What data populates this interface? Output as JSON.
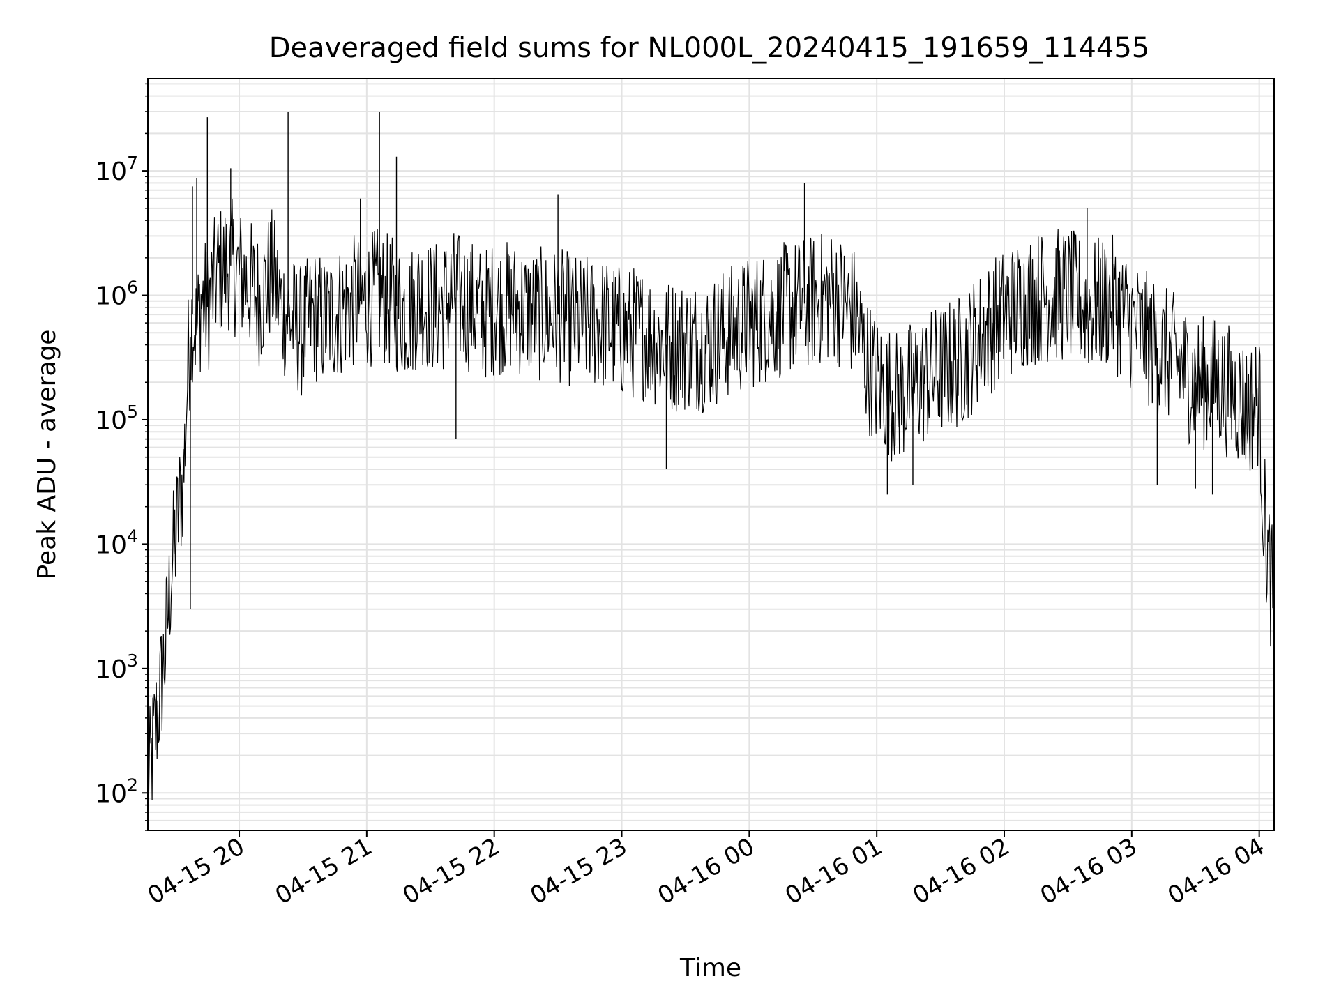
{
  "chart_data": {
    "type": "line",
    "title": "Deaveraged field sums for NL000L_20240415_191659_114455",
    "xlabel": "Time",
    "ylabel": "Peak ADU - average",
    "yscale": "log",
    "ylim": [
      50,
      55000000
    ],
    "xlim": [
      "2024-04-15 19:17",
      "2024-04-16 04:07"
    ],
    "grid": true,
    "line_color": "#000000",
    "y_ticks": [
      {
        "value": 100,
        "base": "10",
        "exp": "2"
      },
      {
        "value": 1000,
        "base": "10",
        "exp": "3"
      },
      {
        "value": 10000,
        "base": "10",
        "exp": "4"
      },
      {
        "value": 100000,
        "base": "10",
        "exp": "5"
      },
      {
        "value": 1000000,
        "base": "10",
        "exp": "6"
      },
      {
        "value": 10000000,
        "base": "10",
        "exp": "7"
      }
    ],
    "x_ticks": [
      {
        "value": "2024-04-15 20:00",
        "label": "04-15 20"
      },
      {
        "value": "2024-04-15 21:00",
        "label": "04-15 21"
      },
      {
        "value": "2024-04-15 22:00",
        "label": "04-15 22"
      },
      {
        "value": "2024-04-15 23:00",
        "label": "04-15 23"
      },
      {
        "value": "2024-04-16 00:00",
        "label": "04-16 00"
      },
      {
        "value": "2024-04-16 01:00",
        "label": "04-16 01"
      },
      {
        "value": "2024-04-16 02:00",
        "label": "04-16 02"
      },
      {
        "value": "2024-04-16 03:00",
        "label": "04-16 03"
      },
      {
        "value": "2024-04-16 04:00",
        "label": "04-16 04"
      }
    ],
    "series": [
      {
        "x": [
          "2024-04-15 19:17",
          "2024-04-15 19:19",
          "2024-04-15 19:22",
          "2024-04-15 19:25",
          "2024-04-15 19:28",
          "2024-04-15 19:31",
          "2024-04-15 19:34",
          "2024-04-15 19:36",
          "2024-04-15 19:38",
          "2024-04-15 19:40",
          "2024-04-15 19:42",
          "2024-04-15 19:45",
          "2024-04-15 19:50",
          "2024-04-15 19:55",
          "2024-04-15 20:00",
          "2024-04-15 20:05",
          "2024-04-15 20:10",
          "2024-04-15 20:15",
          "2024-04-15 20:20",
          "2024-04-15 20:25",
          "2024-04-15 20:30",
          "2024-04-15 20:35",
          "2024-04-15 20:40",
          "2024-04-15 20:45",
          "2024-04-15 20:50",
          "2024-04-15 20:55",
          "2024-04-15 21:00",
          "2024-04-15 21:05",
          "2024-04-15 21:10",
          "2024-04-15 21:15",
          "2024-04-15 21:20",
          "2024-04-15 21:25",
          "2024-04-15 21:30",
          "2024-04-15 21:35",
          "2024-04-15 21:40",
          "2024-04-15 21:45",
          "2024-04-15 21:50",
          "2024-04-15 21:55",
          "2024-04-15 22:00",
          "2024-04-15 22:10",
          "2024-04-15 22:20",
          "2024-04-15 22:30",
          "2024-04-15 22:40",
          "2024-04-15 22:50",
          "2024-04-15 23:00",
          "2024-04-15 23:10",
          "2024-04-15 23:20",
          "2024-04-15 23:30",
          "2024-04-15 23:40",
          "2024-04-15 23:50",
          "2024-04-16 00:00",
          "2024-04-16 00:10",
          "2024-04-16 00:20",
          "2024-04-16 00:30",
          "2024-04-16 00:40",
          "2024-04-16 00:50",
          "2024-04-16 00:55",
          "2024-04-16 01:00",
          "2024-04-16 01:10",
          "2024-04-16 01:20",
          "2024-04-16 01:30",
          "2024-04-16 01:40",
          "2024-04-16 01:50",
          "2024-04-16 02:00",
          "2024-04-16 02:10",
          "2024-04-16 02:20",
          "2024-04-16 02:30",
          "2024-04-16 02:40",
          "2024-04-16 02:50",
          "2024-04-16 03:00",
          "2024-04-16 03:10",
          "2024-04-16 03:20",
          "2024-04-16 03:30",
          "2024-04-16 03:40",
          "2024-04-16 03:50",
          "2024-04-16 03:55",
          "2024-04-16 04:00",
          "2024-04-16 04:02",
          "2024-04-16 04:04",
          "2024-04-16 04:07"
        ],
        "values": [
          100,
          200,
          500,
          1300,
          6000,
          15000,
          40000,
          300000,
          700000,
          500000,
          900000,
          800000,
          1500000,
          1800000,
          1500000,
          1200000,
          900000,
          1500000,
          800000,
          600000,
          500000,
          700000,
          600000,
          700000,
          800000,
          900000,
          900000,
          1000000,
          900000,
          800000,
          700000,
          1000000,
          800000,
          800000,
          1000000,
          900000,
          800000,
          700000,
          800000,
          800000,
          700000,
          700000,
          600000,
          600000,
          500000,
          500000,
          400000,
          400000,
          400000,
          500000,
          600000,
          700000,
          800000,
          900000,
          1000000,
          700000,
          300000,
          200000,
          150000,
          200000,
          250000,
          300000,
          500000,
          700000,
          900000,
          1000000,
          1000000,
          800000,
          900000,
          600000,
          400000,
          300000,
          200000,
          200000,
          150000,
          120000,
          150000,
          20000,
          8000,
          3000
        ]
      }
    ],
    "spikes": [
      {
        "x": "2024-04-15 19:38",
        "value": 7500000
      },
      {
        "x": "2024-04-15 19:40",
        "value": 8800000
      },
      {
        "x": "2024-04-15 19:45",
        "value": 27000000
      },
      {
        "x": "2024-04-15 19:56",
        "value": 10500000
      },
      {
        "x": "2024-04-15 20:23",
        "value": 30000000
      },
      {
        "x": "2024-04-15 20:57",
        "value": 6000000
      },
      {
        "x": "2024-04-15 21:06",
        "value": 30000000
      },
      {
        "x": "2024-04-15 21:14",
        "value": 13000000
      },
      {
        "x": "2024-04-15 22:30",
        "value": 6500000
      },
      {
        "x": "2024-04-16 00:26",
        "value": 8000000
      },
      {
        "x": "2024-04-16 02:39",
        "value": 5000000
      }
    ],
    "dips": [
      {
        "x": "2024-04-15 19:37",
        "value": 3000
      },
      {
        "x": "2024-04-15 21:42",
        "value": 70000
      },
      {
        "x": "2024-04-15 23:21",
        "value": 40000
      },
      {
        "x": "2024-04-16 01:05",
        "value": 25000
      },
      {
        "x": "2024-04-16 01:17",
        "value": 30000
      },
      {
        "x": "2024-04-16 03:12",
        "value": 30000
      },
      {
        "x": "2024-04-16 03:30",
        "value": 28000
      },
      {
        "x": "2024-04-16 03:38",
        "value": 25000
      }
    ]
  }
}
